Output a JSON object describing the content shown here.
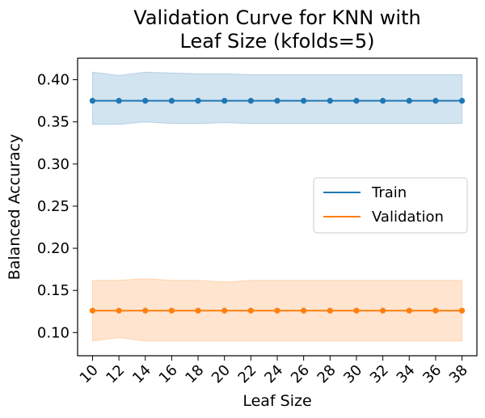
{
  "chart_data": {
    "type": "line",
    "title_lines": [
      "Validation Curve for KNN with",
      "Leaf Size (kfolds=5)"
    ],
    "xlabel": "Leaf Size",
    "ylabel": "Balanced Accuracy",
    "x": [
      10,
      12,
      14,
      16,
      18,
      20,
      22,
      24,
      26,
      28,
      30,
      32,
      34,
      36,
      38
    ],
    "xlim": [
      8.87,
      39.13
    ],
    "ylim": [
      0.0725,
      0.4255
    ],
    "yticks": [
      0.1,
      0.15,
      0.2,
      0.25,
      0.3,
      0.35,
      0.4
    ],
    "ytick_labels": [
      "0.10",
      "0.15",
      "0.20",
      "0.25",
      "0.30",
      "0.35",
      "0.40"
    ],
    "grid": false,
    "legend_position": "center-right",
    "series": [
      {
        "name": "Train",
        "color": "#1f77b4",
        "values": [
          0.375,
          0.375,
          0.375,
          0.375,
          0.375,
          0.375,
          0.375,
          0.375,
          0.375,
          0.375,
          0.375,
          0.375,
          0.375,
          0.375,
          0.375
        ],
        "upper": [
          0.409,
          0.405,
          0.409,
          0.408,
          0.407,
          0.407,
          0.406,
          0.406,
          0.406,
          0.406,
          0.406,
          0.406,
          0.406,
          0.406,
          0.406
        ],
        "lower": [
          0.347,
          0.347,
          0.35,
          0.348,
          0.348,
          0.349,
          0.348,
          0.348,
          0.348,
          0.348,
          0.348,
          0.348,
          0.348,
          0.348,
          0.348
        ]
      },
      {
        "name": "Validation",
        "color": "#ff7f0e",
        "values": [
          0.126,
          0.126,
          0.126,
          0.126,
          0.126,
          0.126,
          0.126,
          0.126,
          0.126,
          0.126,
          0.126,
          0.126,
          0.126,
          0.126,
          0.126
        ],
        "upper": [
          0.162,
          0.162,
          0.164,
          0.162,
          0.162,
          0.16,
          0.162,
          0.162,
          0.162,
          0.162,
          0.162,
          0.162,
          0.162,
          0.162,
          0.162
        ],
        "lower": [
          0.09,
          0.094,
          0.09,
          0.09,
          0.09,
          0.09,
          0.09,
          0.09,
          0.09,
          0.09,
          0.09,
          0.09,
          0.09,
          0.09,
          0.09
        ]
      }
    ]
  }
}
